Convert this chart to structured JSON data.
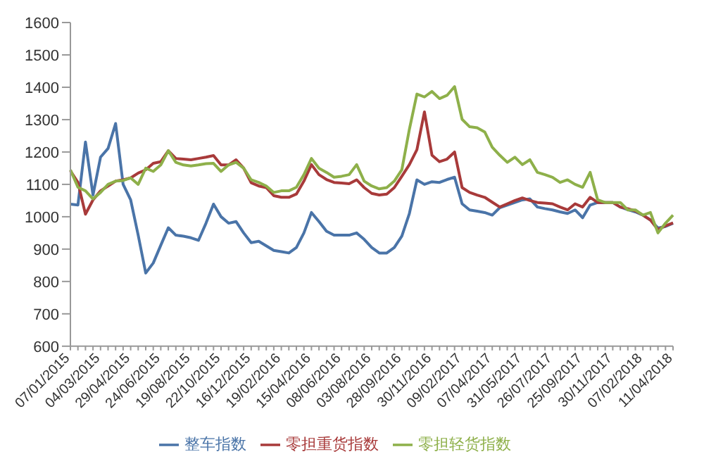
{
  "chart_data": {
    "type": "line",
    "categories": [
      "07/01/2015",
      null,
      null,
      null,
      "04/03/2015",
      null,
      null,
      null,
      "29/04/2015",
      null,
      null,
      null,
      "24/06/2015",
      null,
      null,
      null,
      "19/08/2015",
      null,
      null,
      null,
      "22/10/2015",
      null,
      null,
      null,
      "16/12/2015",
      null,
      null,
      null,
      "19/02/2016",
      null,
      null,
      null,
      "15/04/2016",
      null,
      null,
      null,
      "08/06/2016",
      null,
      null,
      null,
      "03/08/2016",
      null,
      null,
      null,
      "28/09/2016",
      null,
      null,
      null,
      "30/11/2016",
      null,
      null,
      null,
      "09/02/2017",
      null,
      null,
      null,
      "07/04/2017",
      null,
      null,
      null,
      "31/05/2017",
      null,
      null,
      null,
      "26/07/2017",
      null,
      null,
      null,
      "25/09/2017",
      null,
      null,
      null,
      "30/11/2017",
      null,
      null,
      null,
      "07/02/2018",
      null,
      null,
      null,
      "11/04/2018"
    ],
    "series": [
      {
        "name": "整车指数",
        "color": "#4a74a8",
        "values": [
          1039,
          1036,
          1231,
          1067,
          1184,
          1211,
          1288,
          1100,
          1052,
          943,
          826,
          857,
          912,
          966,
          943,
          940,
          935,
          927,
          980,
          1039,
          1000,
          980,
          985,
          950,
          920,
          924,
          910,
          896,
          892,
          888,
          905,
          950,
          1013,
          985,
          955,
          943,
          943,
          943,
          950,
          930,
          905,
          888,
          888,
          905,
          940,
          1010,
          1114,
          1100,
          1108,
          1106,
          1115,
          1122,
          1040,
          1021,
          1017,
          1013,
          1005,
          1028,
          1036,
          1044,
          1052,
          1055,
          1030,
          1025,
          1021,
          1015,
          1010,
          1021,
          997,
          1036,
          1044,
          1044,
          1044,
          1030,
          1022,
          1015,
          1005,
          990,
          965,
          970,
          980
        ]
      },
      {
        "name": "零担重货指数",
        "color": "#a83a3a",
        "values": [
          1142,
          1106,
          1008,
          1052,
          1080,
          1095,
          1110,
          1114,
          1120,
          1135,
          1145,
          1165,
          1170,
          1204,
          1180,
          1178,
          1176,
          1180,
          1184,
          1189,
          1160,
          1160,
          1176,
          1150,
          1105,
          1095,
          1090,
          1065,
          1060,
          1060,
          1070,
          1110,
          1161,
          1130,
          1115,
          1106,
          1104,
          1102,
          1114,
          1090,
          1072,
          1067,
          1070,
          1090,
          1125,
          1161,
          1207,
          1324,
          1190,
          1170,
          1178,
          1200,
          1090,
          1075,
          1067,
          1060,
          1045,
          1030,
          1040,
          1050,
          1058,
          1050,
          1044,
          1042,
          1040,
          1030,
          1021,
          1040,
          1030,
          1060,
          1044,
          1044,
          1044,
          1030,
          1025,
          1018,
          1005,
          990,
          960,
          972,
          981
        ]
      },
      {
        "name": "零担轻货指数",
        "color": "#8eb04a",
        "values": [
          1145,
          1091,
          1080,
          1055,
          1075,
          1100,
          1110,
          1112,
          1120,
          1100,
          1150,
          1140,
          1160,
          1204,
          1168,
          1160,
          1157,
          1160,
          1164,
          1165,
          1140,
          1160,
          1168,
          1150,
          1114,
          1106,
          1095,
          1075,
          1080,
          1080,
          1091,
          1130,
          1180,
          1150,
          1137,
          1122,
          1125,
          1130,
          1161,
          1110,
          1095,
          1086,
          1090,
          1110,
          1145,
          1270,
          1379,
          1370,
          1387,
          1365,
          1375,
          1402,
          1301,
          1278,
          1275,
          1262,
          1215,
          1190,
          1168,
          1184,
          1161,
          1176,
          1137,
          1130,
          1122,
          1106,
          1114,
          1100,
          1091,
          1137,
          1052,
          1044,
          1044,
          1044,
          1021,
          1021,
          1005,
          1013,
          950,
          980,
          1005
        ]
      }
    ],
    "ylim": [
      600,
      1600
    ],
    "yticks": [
      600,
      700,
      800,
      900,
      1000,
      1100,
      1200,
      1300,
      1400,
      1500,
      1600
    ],
    "legend": "bottom"
  }
}
